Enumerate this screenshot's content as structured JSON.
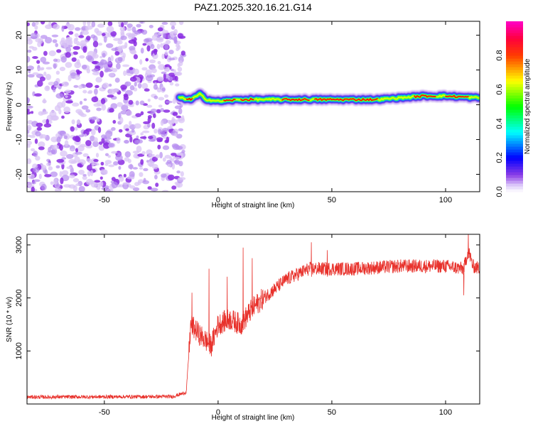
{
  "title": "PAZ1.2025.320.16.21.G14",
  "chart_data": [
    {
      "type": "heatmap",
      "title": "PAZ1.2025.320.16.21.G14",
      "xlabel": "Height of straight line (km)",
      "ylabel": "Frequency (Hz)",
      "xlim": [
        -84,
        115
      ],
      "ylim": [
        -25,
        24
      ],
      "xticks": [
        -50,
        0,
        50,
        100
      ],
      "yticks": [
        -20,
        -10,
        0,
        10,
        20
      ],
      "description_features": {
        "noise_region_x": [
          -84,
          -17
        ],
        "signal_track": [
          {
            "x": -17,
            "y": 2.0
          },
          {
            "x": -12,
            "y": 1.5
          },
          {
            "x": -8,
            "y": 3.0
          },
          {
            "x": -5,
            "y": 1.5
          },
          {
            "x": 0,
            "y": 1.0
          },
          {
            "x": 10,
            "y": 1.5
          },
          {
            "x": 30,
            "y": 1.5
          },
          {
            "x": 50,
            "y": 1.5
          },
          {
            "x": 70,
            "y": 1.5
          },
          {
            "x": 90,
            "y": 2.5
          },
          {
            "x": 100,
            "y": 2.5
          },
          {
            "x": 115,
            "y": 2.0
          }
        ]
      },
      "colorbar": {
        "label": "Normalized spectral amplitude",
        "range": [
          0,
          1
        ],
        "ticks": [
          "0.0",
          "0.2",
          "0.4",
          "0.6",
          "0.8"
        ]
      },
      "colors": {
        "low": "#ffffff",
        "noise": "#8a2be2",
        "noise_light": "#d9c4f5",
        "blue": "#0000ff",
        "cyan": "#00ffff",
        "green": "#00ff00",
        "yellow": "#ffff00",
        "red": "#ff0000",
        "magenta": "#ff00aa"
      }
    },
    {
      "type": "line",
      "title": "",
      "xlabel": "Height of straight line (km)",
      "ylabel": "SNR (10 * v/v)",
      "xlim": [
        -84,
        115
      ],
      "ylim": [
        0,
        3200
      ],
      "xticks": [
        -50,
        0,
        50,
        100
      ],
      "yticks": [
        1000,
        2000,
        3000
      ],
      "series": [
        {
          "name": "SNR",
          "color": "#e8312b",
          "trend": [
            {
              "x": -84,
              "y": 130
            },
            {
              "x": -20,
              "y": 140
            },
            {
              "x": -14,
              "y": 220
            },
            {
              "x": -12,
              "y": 1500
            },
            {
              "x": -8,
              "y": 1300
            },
            {
              "x": -3,
              "y": 1100
            },
            {
              "x": 0,
              "y": 1500
            },
            {
              "x": 5,
              "y": 1600
            },
            {
              "x": 10,
              "y": 1500
            },
            {
              "x": 15,
              "y": 1800
            },
            {
              "x": 20,
              "y": 2000
            },
            {
              "x": 30,
              "y": 2350
            },
            {
              "x": 40,
              "y": 2550
            },
            {
              "x": 50,
              "y": 2550
            },
            {
              "x": 60,
              "y": 2550
            },
            {
              "x": 80,
              "y": 2600
            },
            {
              "x": 100,
              "y": 2600
            },
            {
              "x": 108,
              "y": 2550
            },
            {
              "x": 110,
              "y": 2900
            },
            {
              "x": 112,
              "y": 2600
            },
            {
              "x": 115,
              "y": 2550
            }
          ],
          "spikes": [
            {
              "x": -11.5,
              "y": 2100
            },
            {
              "x": -4,
              "y": 2550
            },
            {
              "x": 4,
              "y": 2400
            },
            {
              "x": 11,
              "y": 2950
            },
            {
              "x": 15,
              "y": 2750
            },
            {
              "x": 41,
              "y": 3050
            },
            {
              "x": 48,
              "y": 2900
            },
            {
              "x": 108,
              "y": 2050
            },
            {
              "x": 110,
              "y": 3250
            }
          ]
        }
      ]
    }
  ]
}
